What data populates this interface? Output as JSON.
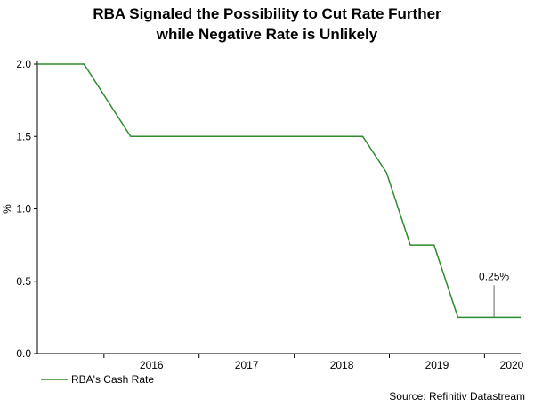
{
  "chart_data": {
    "type": "line",
    "title": [
      "RBA Signaled the Possibility to Cut Rate Further",
      "while Negative Rate is Unlikely"
    ],
    "ylabel": "%",
    "xlabel": "",
    "ylim": [
      0,
      2.0
    ],
    "yticks": [
      "0.0",
      "0.5",
      "1.0",
      "1.5",
      "2.0"
    ],
    "xlim": [
      2015.3,
      2020.38
    ],
    "xticks": [
      "2016",
      "2017",
      "2018",
      "2019",
      "2020"
    ],
    "series": [
      {
        "name": "RBA's Cash Rate",
        "color": "#2e8b2e",
        "x": [
          2015.3,
          2015.79,
          2016.28,
          2018.72,
          2018.97,
          2019.22,
          2019.47,
          2019.72,
          2020.38
        ],
        "y": [
          2.0,
          2.0,
          1.5,
          1.5,
          1.25,
          0.75,
          0.75,
          0.25,
          0.25
        ]
      }
    ],
    "annotations": [
      {
        "text": "0.25%",
        "x": 2020.1,
        "y": 0.25
      }
    ],
    "legend": "bottom-left",
    "source": "Source: Refinitiv Datastream"
  }
}
